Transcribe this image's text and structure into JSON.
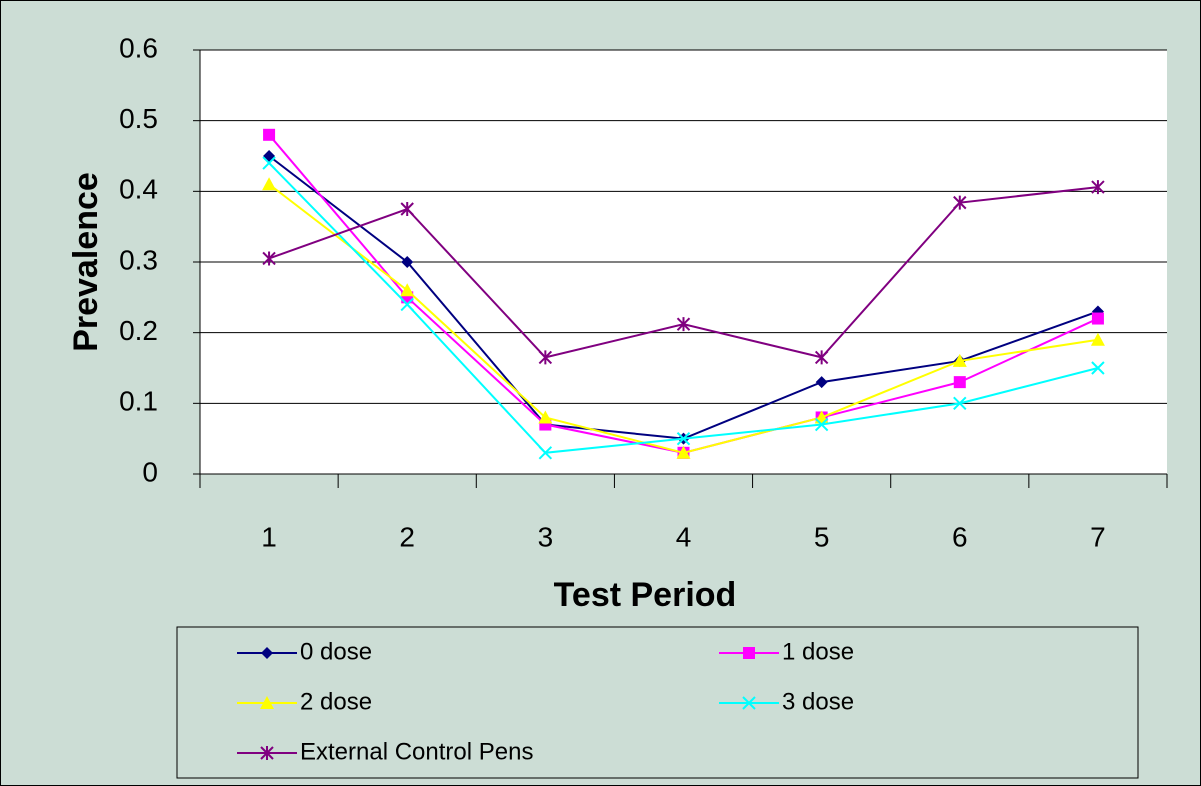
{
  "chart_data": {
    "type": "line",
    "x_label": "Test Period",
    "y_label": "Prevalence",
    "categories": [
      "1",
      "2",
      "3",
      "4",
      "5",
      "6",
      "7"
    ],
    "ylim": [
      0,
      0.6
    ],
    "yticks": [
      0,
      0.1,
      0.2,
      0.3,
      0.4,
      0.5,
      0.6
    ],
    "grid": true,
    "legend": "bottom",
    "series": [
      {
        "name": "0 dose",
        "color": "#000080",
        "marker": "diamond",
        "values": [
          0.45,
          0.3,
          0.07,
          0.05,
          0.13,
          0.16,
          0.23
        ]
      },
      {
        "name": "1 dose",
        "color": "#FF00FF",
        "marker": "square",
        "values": [
          0.48,
          0.25,
          0.07,
          0.03,
          0.08,
          0.13,
          0.22
        ]
      },
      {
        "name": "2 dose",
        "color": "#FFFF00",
        "marker": "triangle",
        "values": [
          0.41,
          0.26,
          0.08,
          0.03,
          0.08,
          0.16,
          0.19
        ]
      },
      {
        "name": "3 dose",
        "color": "#00FFFF",
        "marker": "x",
        "values": [
          0.44,
          0.24,
          0.03,
          0.05,
          0.07,
          0.1,
          0.15
        ]
      },
      {
        "name": "External Control Pens",
        "color": "#800080",
        "marker": "star",
        "values": [
          0.305,
          0.375,
          0.165,
          0.212,
          0.165,
          0.384,
          0.406
        ]
      }
    ]
  }
}
